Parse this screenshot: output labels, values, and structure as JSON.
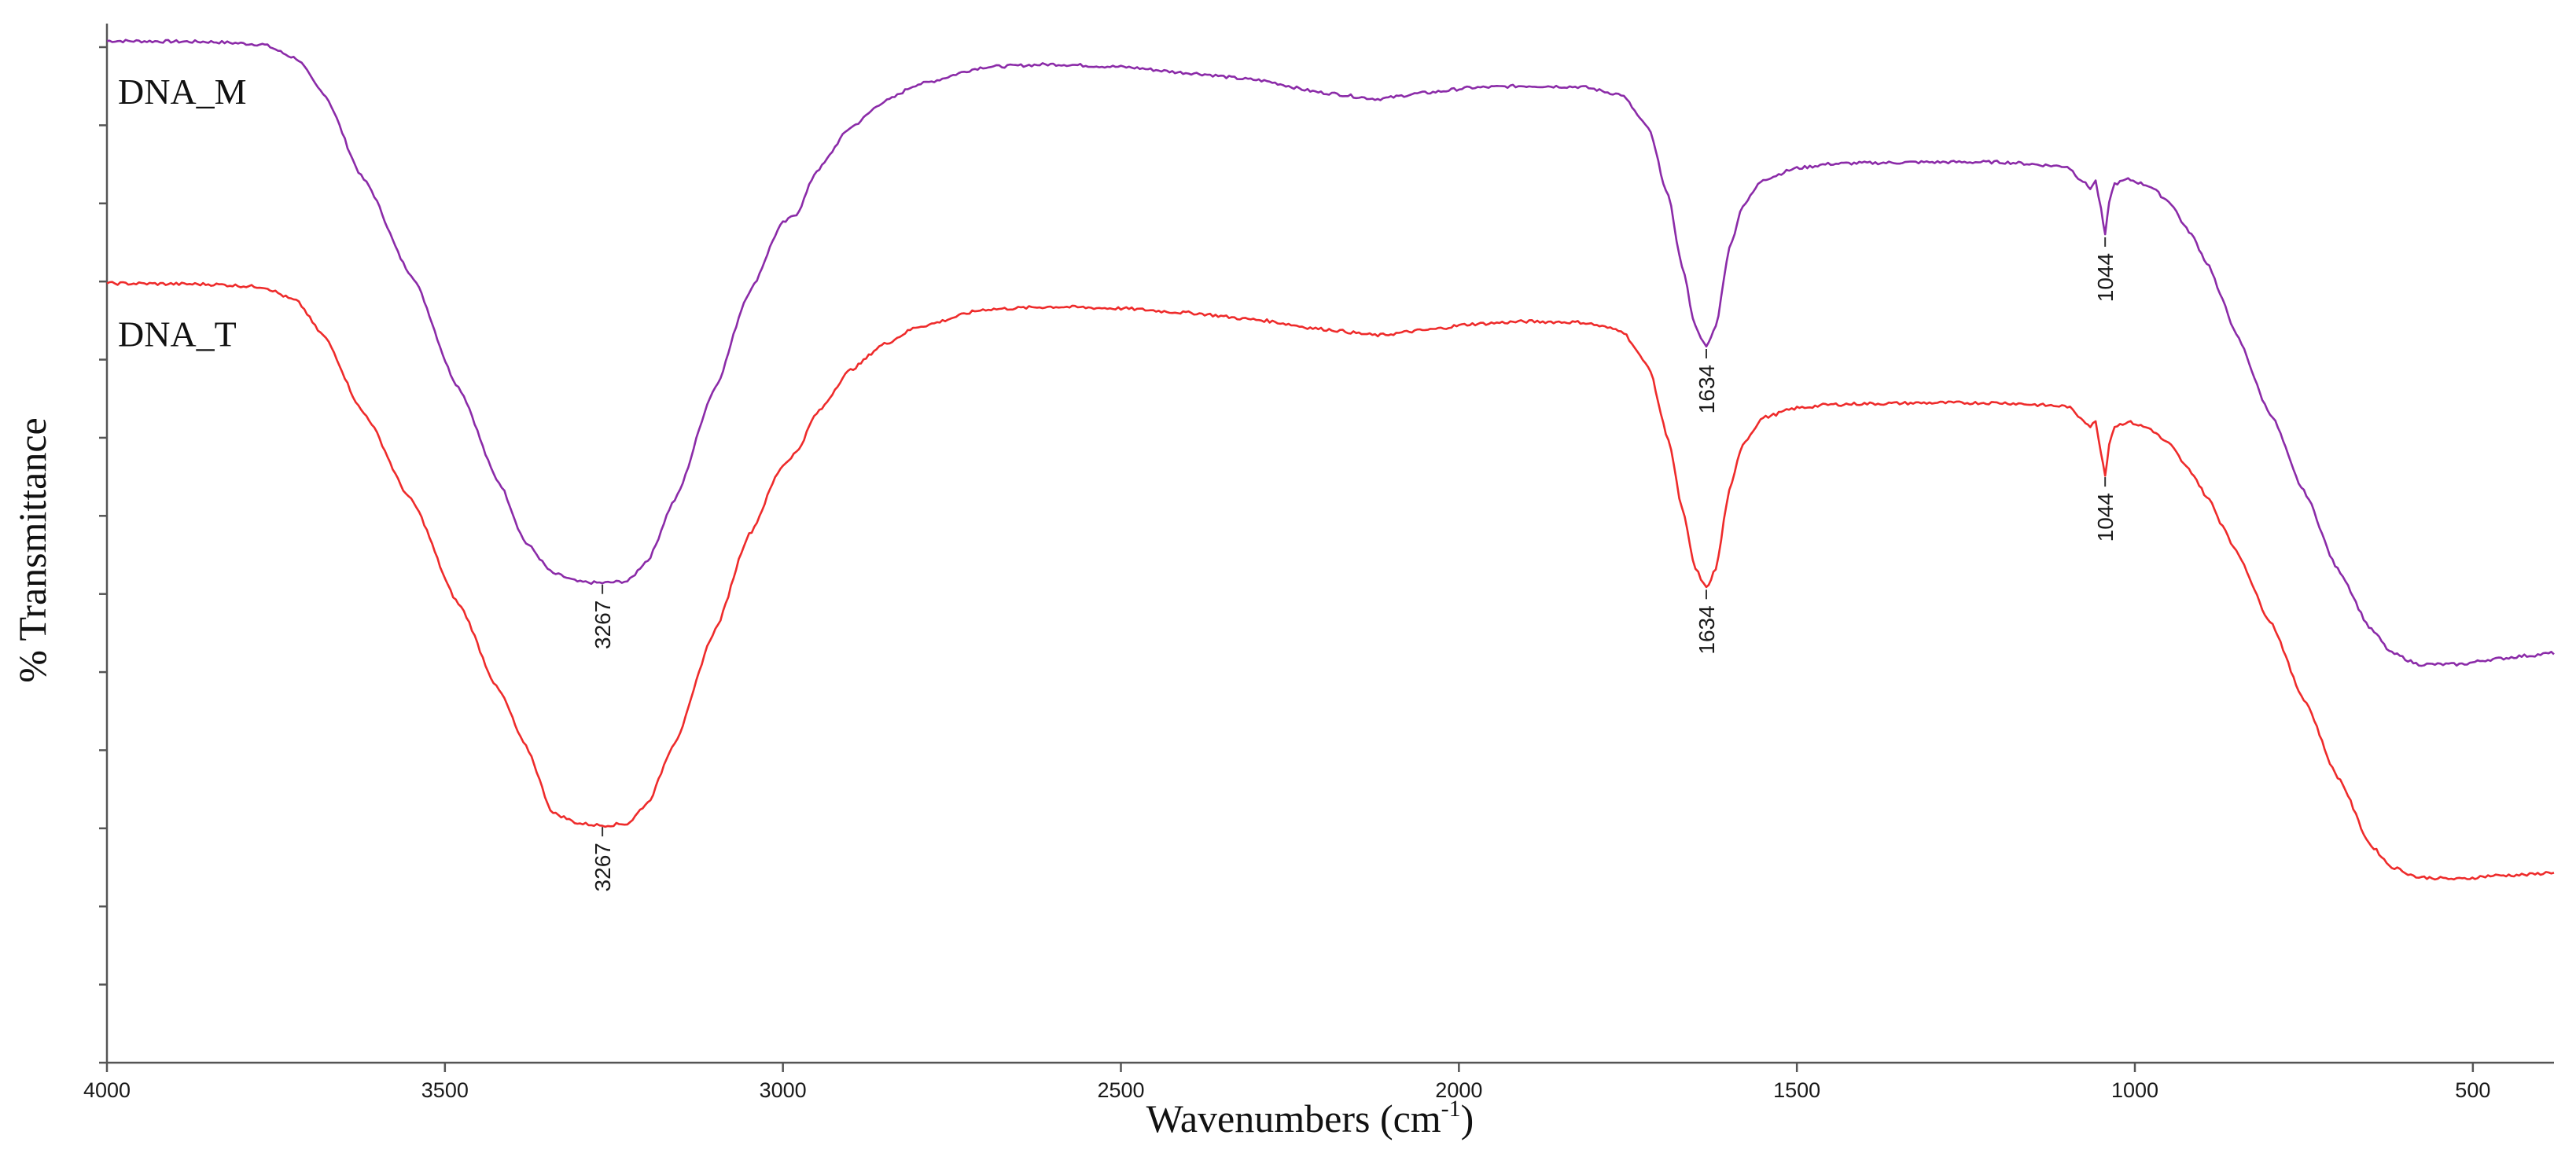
{
  "chart_data": {
    "type": "line",
    "title": "",
    "xlabel": "Wavenumbers (cm",
    "xlabel_sup": "-1",
    "xlabel_suffix": ")",
    "ylabel": "% Transmittance",
    "xlim": [
      4000,
      380
    ],
    "x_ticks": [
      4000,
      3500,
      3000,
      2500,
      2000,
      1500,
      1000,
      500
    ],
    "y_minor_ticks": 13,
    "series": [
      {
        "name": "DNA_M",
        "color": "#8B2BA8",
        "points": [
          [
            4000,
            96.0
          ],
          [
            3850,
            95.9
          ],
          [
            3770,
            95.6
          ],
          [
            3720,
            94.0
          ],
          [
            3680,
            90.0
          ],
          [
            3620,
            80.0
          ],
          [
            3550,
            69.0
          ],
          [
            3480,
            56.0
          ],
          [
            3420,
            45.0
          ],
          [
            3380,
            38.0
          ],
          [
            3340,
            34.5
          ],
          [
            3300,
            33.5
          ],
          [
            3267,
            33.4
          ],
          [
            3230,
            33.6
          ],
          [
            3200,
            36.0
          ],
          [
            3160,
            43.0
          ],
          [
            3100,
            56.0
          ],
          [
            3050,
            67.0
          ],
          [
            3000,
            75.0
          ],
          [
            2980,
            76.0
          ],
          [
            2950,
            81.0
          ],
          [
            2900,
            86.0
          ],
          [
            2850,
            89.0
          ],
          [
            2800,
            91.0
          ],
          [
            2700,
            93.0
          ],
          [
            2600,
            93.3
          ],
          [
            2500,
            93.0
          ],
          [
            2400,
            92.3
          ],
          [
            2300,
            91.5
          ],
          [
            2200,
            90.0
          ],
          [
            2120,
            89.3
          ],
          [
            2050,
            90.0
          ],
          [
            1980,
            90.6
          ],
          [
            1900,
            90.8
          ],
          [
            1820,
            90.7
          ],
          [
            1760,
            89.8
          ],
          [
            1720,
            86.0
          ],
          [
            1690,
            78.0
          ],
          [
            1670,
            70.0
          ],
          [
            1650,
            63.0
          ],
          [
            1634,
            60.6
          ],
          [
            1620,
            63.0
          ],
          [
            1600,
            72.0
          ],
          [
            1580,
            77.0
          ],
          [
            1550,
            80.0
          ],
          [
            1500,
            81.3
          ],
          [
            1450,
            81.8
          ],
          [
            1400,
            81.9
          ],
          [
            1300,
            82.0
          ],
          [
            1200,
            82.0
          ],
          [
            1100,
            81.5
          ],
          [
            1080,
            80.0
          ],
          [
            1066,
            79.0
          ],
          [
            1058,
            79.8
          ],
          [
            1050,
            76.5
          ],
          [
            1044,
            73.5
          ],
          [
            1038,
            77.5
          ],
          [
            1030,
            79.5
          ],
          [
            1010,
            80.0
          ],
          [
            980,
            79.3
          ],
          [
            950,
            77.5
          ],
          [
            920,
            74.0
          ],
          [
            890,
            70.0
          ],
          [
            870,
            66.0
          ],
          [
            850,
            62.0
          ],
          [
            800,
            53.0
          ],
          [
            750,
            44.0
          ],
          [
            700,
            35.0
          ],
          [
            650,
            28.0
          ],
          [
            620,
            25.3
          ],
          [
            580,
            24.0
          ],
          [
            520,
            24.0
          ],
          [
            470,
            24.6
          ],
          [
            420,
            25.0
          ],
          [
            380,
            25.3
          ]
        ]
      },
      {
        "name": "DNA_T",
        "color": "#EE2B2B",
        "points": [
          [
            4000,
            68.0
          ],
          [
            3850,
            67.9
          ],
          [
            3770,
            67.6
          ],
          [
            3720,
            66.0
          ],
          [
            3680,
            62.0
          ],
          [
            3620,
            53.0
          ],
          [
            3550,
            43.0
          ],
          [
            3480,
            31.0
          ],
          [
            3420,
            21.0
          ],
          [
            3380,
            14.5
          ],
          [
            3340,
            6.8
          ],
          [
            3300,
            5.6
          ],
          [
            3267,
            5.4
          ],
          [
            3230,
            5.6
          ],
          [
            3200,
            8.0
          ],
          [
            3160,
            15.0
          ],
          [
            3100,
            28.0
          ],
          [
            3050,
            39.0
          ],
          [
            3000,
            47.0
          ],
          [
            2980,
            48.5
          ],
          [
            2950,
            53.0
          ],
          [
            2900,
            58.0
          ],
          [
            2850,
            61.0
          ],
          [
            2800,
            63.0
          ],
          [
            2700,
            65.0
          ],
          [
            2600,
            65.3
          ],
          [
            2500,
            65.1
          ],
          [
            2400,
            64.6
          ],
          [
            2300,
            63.8
          ],
          [
            2200,
            62.7
          ],
          [
            2120,
            62.0
          ],
          [
            2050,
            62.6
          ],
          [
            1980,
            63.3
          ],
          [
            1900,
            63.6
          ],
          [
            1820,
            63.5
          ],
          [
            1760,
            62.6
          ],
          [
            1720,
            58.5
          ],
          [
            1690,
            50.0
          ],
          [
            1670,
            42.0
          ],
          [
            1650,
            35.0
          ],
          [
            1634,
            32.8
          ],
          [
            1620,
            35.0
          ],
          [
            1600,
            44.0
          ],
          [
            1580,
            49.5
          ],
          [
            1550,
            52.5
          ],
          [
            1500,
            53.6
          ],
          [
            1450,
            54.0
          ],
          [
            1400,
            54.1
          ],
          [
            1300,
            54.2
          ],
          [
            1200,
            54.2
          ],
          [
            1100,
            53.8
          ],
          [
            1080,
            52.5
          ],
          [
            1066,
            51.5
          ],
          [
            1058,
            52.0
          ],
          [
            1050,
            48.5
          ],
          [
            1044,
            45.8
          ],
          [
            1038,
            49.5
          ],
          [
            1030,
            51.5
          ],
          [
            1010,
            52.0
          ],
          [
            980,
            51.3
          ],
          [
            950,
            49.5
          ],
          [
            920,
            46.5
          ],
          [
            890,
            43.0
          ],
          [
            870,
            40.0
          ],
          [
            850,
            37.0
          ],
          [
            800,
            29.0
          ],
          [
            750,
            20.0
          ],
          [
            700,
            11.0
          ],
          [
            650,
            3.0
          ],
          [
            620,
            0.6
          ],
          [
            580,
            -0.6
          ],
          [
            520,
            -0.8
          ],
          [
            470,
            -0.4
          ],
          [
            420,
            -0.3
          ],
          [
            380,
            0.0
          ]
        ]
      }
    ],
    "ylim": [
      -22,
      98
    ],
    "annotations": [
      {
        "series": "DNA_M",
        "x": 3267,
        "label": "3267"
      },
      {
        "series": "DNA_M",
        "x": 1634,
        "label": "1634"
      },
      {
        "series": "DNA_M",
        "x": 1044,
        "label": "1044"
      },
      {
        "series": "DNA_T",
        "x": 3267,
        "label": "3267"
      },
      {
        "series": "DNA_T",
        "x": 1634,
        "label": "1634"
      },
      {
        "series": "DNA_T",
        "x": 1044,
        "label": "1044"
      }
    ]
  }
}
